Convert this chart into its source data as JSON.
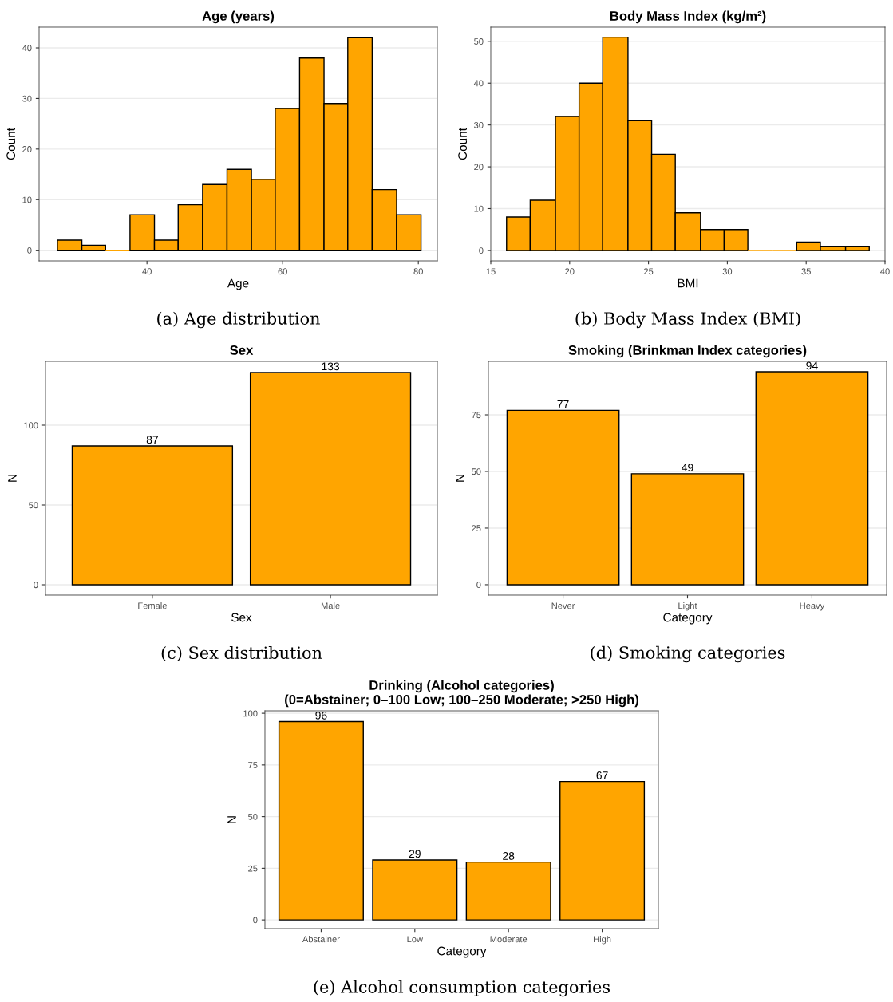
{
  "chart_data": [
    {
      "type": "histogram",
      "title": "Age (years)",
      "xlabel": "Age",
      "ylabel": "Count",
      "bins": [
        26.8,
        30.4,
        33.9,
        37.5,
        41.1,
        44.6,
        48.2,
        51.8,
        55.4,
        58.9,
        62.5,
        66.1,
        69.6,
        73.2,
        76.8,
        80.4
      ],
      "values": [
        2,
        1,
        0,
        7,
        2,
        9,
        13,
        16,
        14,
        28,
        38,
        29,
        42,
        12,
        7
      ],
      "color": "#ffa500",
      "xlim": [
        24.1,
        82.8
      ],
      "xticks": [
        40,
        60,
        80
      ],
      "ylim": [
        -2.1,
        44.1
      ],
      "yticks": [
        0,
        10,
        20,
        30,
        40
      ],
      "grid": "y",
      "annotations": [
        "(a) Age distribution"
      ]
    },
    {
      "type": "histogram",
      "title": "Body Mass Index (kg/m²)",
      "xlabel": "BMI",
      "ylabel": "Count",
      "bins": [
        16.0,
        17.5,
        19.1,
        20.6,
        22.1,
        23.7,
        25.2,
        26.7,
        28.3,
        29.8,
        31.3,
        32.9,
        34.4,
        35.9,
        37.5,
        39.0
      ],
      "values": [
        8,
        12,
        32,
        40,
        51,
        31,
        23,
        9,
        5,
        5,
        0,
        0,
        2,
        1,
        1
      ],
      "color": "#ffa500",
      "xlim": [
        15,
        40
      ],
      "xticks": [
        15,
        20,
        25,
        30,
        35,
        40
      ],
      "ylim": [
        -2.5,
        53.4
      ],
      "yticks": [
        0,
        10,
        20,
        30,
        40,
        50
      ],
      "grid": "y",
      "annotations": [
        "(b) Body Mass Index (BMI)"
      ]
    },
    {
      "type": "bar",
      "title": "Sex",
      "xlabel": "Sex",
      "ylabel": "N",
      "categories": [
        "Female",
        "Male"
      ],
      "values": [
        87,
        133
      ],
      "color": "#ffa500",
      "ylim": [
        -6.5,
        140
      ],
      "yticks": [
        0,
        50,
        100
      ],
      "grid": "y",
      "data_labels": true,
      "annotations": [
        "(c) Sex distribution"
      ]
    },
    {
      "type": "bar",
      "title": "Smoking (Brinkman Index categories)",
      "xlabel": "Category",
      "ylabel": "N",
      "categories": [
        "Never",
        "Light",
        "Heavy"
      ],
      "values": [
        77,
        49,
        94
      ],
      "color": "#ffa500",
      "ylim": [
        -4.6,
        98.6
      ],
      "yticks": [
        0,
        25,
        50,
        75
      ],
      "grid": "y",
      "data_labels": true,
      "annotations": [
        "(d) Smoking categories"
      ]
    },
    {
      "type": "bar",
      "title": "Drinking (Alcohol categories)\n(0=Abstainer; 0–100 Low; 100–250 Moderate; >250 High)",
      "xlabel": "Category",
      "ylabel": "N",
      "categories": [
        "Abstainer",
        "Low",
        "Moderate",
        "High"
      ],
      "values": [
        96,
        29,
        28,
        67
      ],
      "color": "#ffa500",
      "ylim": [
        -4.2,
        101.2
      ],
      "yticks": [
        0,
        25,
        50,
        75,
        100
      ],
      "grid": "y",
      "data_labels": true,
      "annotations": [
        "(e) Alcohol consumption categories"
      ]
    }
  ]
}
